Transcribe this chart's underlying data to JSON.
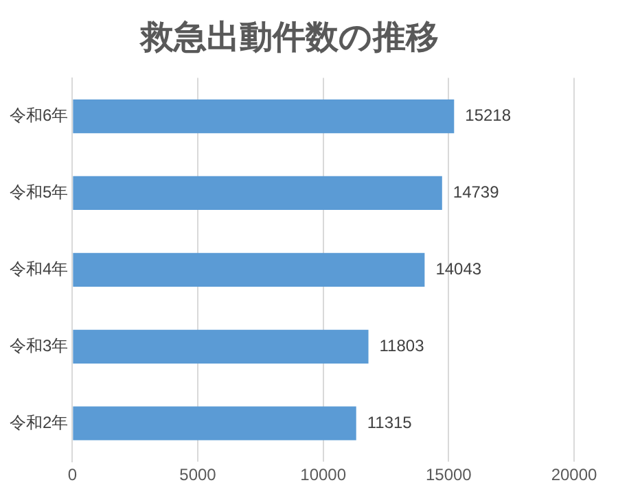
{
  "chart_data": {
    "type": "bar",
    "orientation": "horizontal",
    "title": "救急出動件数の推移",
    "categories": [
      "令和6年",
      "令和5年",
      "令和4年",
      "令和3年",
      "令和2年"
    ],
    "values": [
      15218,
      14739,
      14043,
      11803,
      11315
    ],
    "color": "#5b9bd5",
    "xlim": [
      0,
      20000
    ],
    "xticks": [
      0,
      5000,
      10000,
      15000,
      20000
    ],
    "grid": "x",
    "data_labels": true,
    "legend": false
  }
}
